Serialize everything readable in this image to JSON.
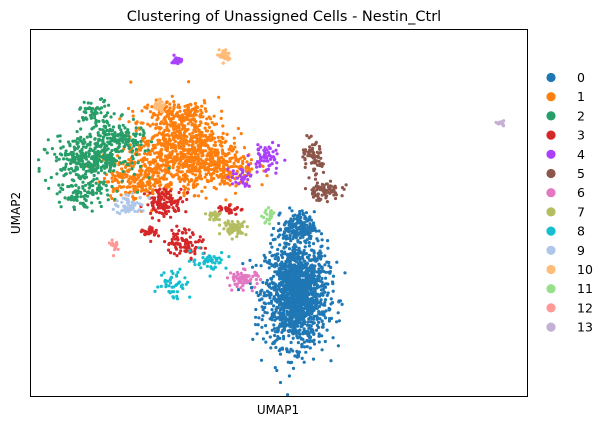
{
  "chart_data": {
    "type": "scatter",
    "title": "Clustering of Unassigned Cells - Nestin_Ctrl",
    "xlabel": "UMAP1",
    "ylabel": "UMAP2",
    "ticks": "none",
    "grid": false,
    "legend_placement": "right",
    "xlim": [
      0,
      100
    ],
    "ylim": [
      0,
      100
    ],
    "clusters": [
      {
        "name": "0",
        "color": "#1f77b4",
        "n": 1700,
        "blobs": [
          [
            53.5,
            28,
            5,
            11.5,
            0.9
          ],
          [
            54,
            46,
            2.5,
            3.5,
            0.1
          ]
        ]
      },
      {
        "name": "1",
        "color": "#ff7f0e",
        "n": 1300,
        "blobs": [
          [
            30,
            68,
            8,
            8,
            0.5
          ],
          [
            22,
            60,
            6,
            5,
            0.2
          ],
          [
            38,
            62,
            6,
            5,
            0.2
          ],
          [
            30,
            77,
            6,
            3,
            0.1
          ]
        ]
      },
      {
        "name": "2",
        "color": "#279e68",
        "n": 650,
        "blobs": [
          [
            12,
            65,
            6,
            5,
            0.55
          ],
          [
            18,
            70,
            4,
            4,
            0.2
          ],
          [
            11,
            55,
            4,
            3,
            0.15
          ],
          [
            13,
            77,
            3,
            3,
            0.1
          ]
        ]
      },
      {
        "name": "3",
        "color": "#d62728",
        "n": 260,
        "blobs": [
          [
            27,
            53,
            3,
            3,
            0.45
          ],
          [
            31,
            42,
            3,
            3,
            0.35
          ],
          [
            24,
            45,
            1.5,
            1.5,
            0.1
          ],
          [
            40,
            51,
            2,
            1,
            0.1
          ]
        ]
      },
      {
        "name": "4",
        "color": "#aa40fc",
        "n": 120,
        "blobs": [
          [
            47.5,
            65,
            2.5,
            3.5,
            0.5
          ],
          [
            42,
            60,
            2,
            2,
            0.25
          ],
          [
            29.5,
            91.5,
            0.8,
            0.8,
            0.25
          ]
        ]
      },
      {
        "name": "5",
        "color": "#8c564b",
        "n": 150,
        "blobs": [
          [
            59,
            56,
            3,
            2,
            0.5
          ],
          [
            57,
            64,
            1.5,
            4,
            0.4
          ],
          [
            55.5,
            66,
            1,
            1,
            0.1
          ]
        ]
      },
      {
        "name": "6",
        "color": "#e377c2",
        "n": 70,
        "blobs": [
          [
            43,
            32,
            2.5,
            2,
            1
          ]
        ]
      },
      {
        "name": "7",
        "color": "#b5bd61",
        "n": 90,
        "blobs": [
          [
            41,
            46,
            2,
            1.5,
            0.7
          ],
          [
            37,
            49,
            1.5,
            1.5,
            0.3
          ]
        ]
      },
      {
        "name": "8",
        "color": "#17becf",
        "n": 90,
        "blobs": [
          [
            29,
            31,
            2.5,
            3.5,
            0.5
          ],
          [
            36,
            37,
            3,
            2,
            0.5
          ]
        ]
      },
      {
        "name": "9",
        "color": "#aec7e8",
        "n": 60,
        "blobs": [
          [
            20,
            52,
            2.5,
            2,
            1
          ]
        ]
      },
      {
        "name": "10",
        "color": "#ffbb78",
        "n": 70,
        "blobs": [
          [
            39,
            93,
            0.8,
            1.5,
            0.5
          ],
          [
            26,
            79,
            1,
            1.5,
            0.5
          ]
        ]
      },
      {
        "name": "11",
        "color": "#98df8a",
        "n": 22,
        "blobs": [
          [
            48,
            49,
            1,
            1.5,
            1
          ]
        ]
      },
      {
        "name": "12",
        "color": "#ff9896",
        "n": 18,
        "blobs": [
          [
            17,
            41,
            0.6,
            1.5,
            1
          ]
        ]
      },
      {
        "name": "13",
        "color": "#c5b0d5",
        "n": 12,
        "blobs": [
          [
            94.5,
            74.5,
            0.6,
            0.5,
            1
          ]
        ]
      }
    ]
  }
}
